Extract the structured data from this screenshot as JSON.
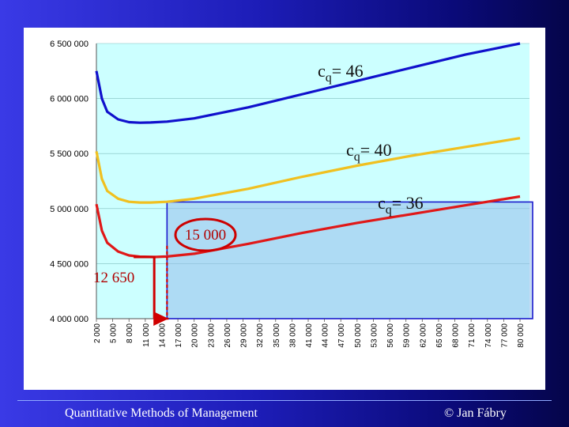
{
  "footer": {
    "left": "Quantitative Methods of Management",
    "right": "© Jan Fábry"
  },
  "chart_data": {
    "type": "line",
    "title": "",
    "xlabel": "",
    "ylabel": "",
    "ylim": [
      4000000,
      6500000
    ],
    "xlim": [
      2000,
      80000
    ],
    "yticks": [
      {
        "value": 4000000,
        "label": "4 000 000"
      },
      {
        "value": 4500000,
        "label": "4 500 000"
      },
      {
        "value": 5000000,
        "label": "5 000 000"
      },
      {
        "value": 5500000,
        "label": "5 500 000"
      },
      {
        "value": 6000000,
        "label": "6 000 000"
      },
      {
        "value": 6500000,
        "label": "6 500 000"
      }
    ],
    "xticks": [
      "2 000",
      "5 000",
      "8 000",
      "11 000",
      "14 000",
      "17 000",
      "20 000",
      "23 000",
      "26 000",
      "29 000",
      "32 000",
      "35 000",
      "38 000",
      "41 000",
      "44 000",
      "47 000",
      "50 000",
      "53 000",
      "56 000",
      "59 000",
      "62 000",
      "65 000",
      "68 000",
      "71 000",
      "74 000",
      "77 000",
      "80 000"
    ],
    "grid": {
      "horizontal": true,
      "vertical": false
    },
    "plot_background": "#ccffff",
    "series": [
      {
        "name": "cq = 46",
        "color": "#1010cc",
        "x": [
          2000,
          3000,
          4000,
          6000,
          8000,
          10000,
          12000,
          15000,
          20000,
          30000,
          40000,
          50000,
          60000,
          70000,
          80000
        ],
        "y": [
          6250000,
          6000000,
          5880000,
          5810000,
          5785000,
          5780000,
          5782000,
          5790000,
          5820000,
          5920000,
          6040000,
          6160000,
          6280000,
          6400000,
          6500000
        ]
      },
      {
        "name": "cq = 40",
        "color": "#f0c020",
        "x": [
          2000,
          3000,
          4000,
          6000,
          8000,
          10000,
          12000,
          15000,
          20000,
          30000,
          40000,
          50000,
          60000,
          70000,
          80000
        ],
        "y": [
          5520000,
          5270000,
          5160000,
          5090000,
          5062000,
          5055000,
          5055000,
          5062000,
          5090000,
          5180000,
          5290000,
          5390000,
          5480000,
          5560000,
          5640000
        ]
      },
      {
        "name": "cq = 36",
        "color": "#e01818",
        "x": [
          2000,
          3000,
          4000,
          6000,
          8000,
          10000,
          12650,
          15000,
          20000,
          30000,
          40000,
          50000,
          60000,
          70000,
          80000
        ],
        "y": [
          5040000,
          4800000,
          4690000,
          4610000,
          4575000,
          4563000,
          4560000,
          4565000,
          4590000,
          4680000,
          4780000,
          4870000,
          4950000,
          5030000,
          5110000
        ]
      }
    ],
    "curve_labels": [
      {
        "text": "cq= 46",
        "series": 0
      },
      {
        "text": "cq= 40",
        "series": 1
      },
      {
        "text": "cq= 36",
        "series": 2
      }
    ],
    "highlight_region": {
      "x_from": 15000,
      "x_to": 80000,
      "y_from": 4000000,
      "y_to": 5060000
    },
    "annotations": [
      {
        "text": "15 000",
        "x": 15000
      },
      {
        "text": "12 650",
        "x": 12650
      }
    ]
  }
}
